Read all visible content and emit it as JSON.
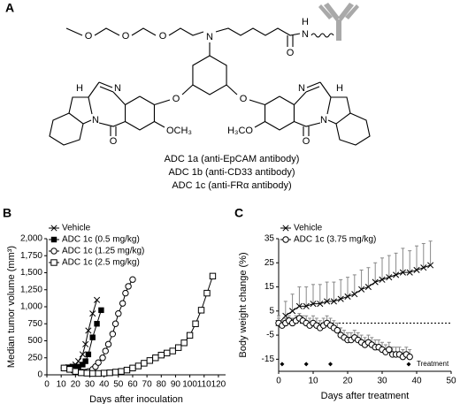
{
  "structure": {
    "panel": "A",
    "atoms": [
      "O",
      "O",
      "O",
      "N",
      "O",
      "N",
      "H",
      "O",
      "O",
      "N",
      "N",
      "O",
      "H",
      "OCH₃",
      "N",
      "N",
      "O",
      "H",
      "H₃CO"
    ],
    "captions": [
      "ADC 1a (anti-EpCAM antibody)",
      "ADC 1b (anti-CD33 antibody)",
      "ADC 1c (anti-FRα antibody)"
    ]
  },
  "chart_data": [
    {
      "type": "line",
      "panel": "B",
      "xlabel": "Days after inoculation",
      "ylabel": "Median tumor volume (mm³)",
      "xlim": [
        0,
        125
      ],
      "xticks": [
        0,
        10,
        20,
        30,
        40,
        50,
        60,
        70,
        80,
        90,
        100,
        110,
        120
      ],
      "ylim": [
        0,
        2000
      ],
      "yticks": [
        0,
        250,
        500,
        750,
        {
          "value": 1000,
          "label": "1,000"
        },
        {
          "value": 1250,
          "label": "1,250"
        },
        {
          "value": 1500,
          "label": "1,500"
        },
        {
          "value": 1750,
          "label": "1,750"
        },
        {
          "value": 2000,
          "label": "2,000"
        }
      ],
      "legend": "top-left",
      "series": [
        {
          "name": "Vehicle",
          "marker": "x",
          "color": "#000",
          "x": [
            12,
            15,
            18,
            20,
            22,
            25,
            27,
            29,
            32,
            35
          ],
          "values": [
            100,
            110,
            120,
            150,
            200,
            300,
            450,
            650,
            900,
            1100
          ]
        },
        {
          "name": "ADC 1c (0.5 mg/kg)",
          "marker": "filled-square",
          "color": "#000",
          "x": [
            12,
            15,
            18,
            20,
            22,
            25,
            27,
            29,
            32,
            35,
            38
          ],
          "values": [
            100,
            110,
            120,
            110,
            120,
            150,
            200,
            300,
            550,
            750,
            950
          ]
        },
        {
          "name": "ADC 1c (1.25 mg/kg)",
          "marker": "open-circle",
          "color": "#000",
          "x": [
            12,
            15,
            18,
            20,
            22,
            25,
            27,
            29,
            32,
            34,
            36,
            39,
            41,
            43,
            46,
            48,
            50,
            53,
            55,
            57,
            60
          ],
          "values": [
            100,
            90,
            70,
            60,
            50,
            40,
            40,
            50,
            80,
            120,
            180,
            250,
            350,
            450,
            600,
            750,
            900,
            1050,
            1200,
            1300,
            1400
          ]
        },
        {
          "name": "ADC 1c (2.5 mg/kg)",
          "marker": "open-square",
          "color": "#000",
          "x": [
            12,
            16,
            20,
            24,
            28,
            32,
            36,
            40,
            44,
            48,
            52,
            56,
            60,
            64,
            68,
            72,
            76,
            80,
            84,
            88,
            92,
            96,
            100,
            104,
            108,
            112,
            116
          ],
          "values": [
            100,
            80,
            50,
            30,
            25,
            20,
            20,
            25,
            30,
            40,
            50,
            70,
            100,
            130,
            170,
            210,
            250,
            290,
            320,
            350,
            400,
            470,
            580,
            750,
            950,
            1200,
            1450
          ]
        }
      ]
    },
    {
      "type": "line",
      "panel": "C",
      "xlabel": "Days after treatment",
      "ylabel": "Body weight change (%)",
      "xlim": [
        0,
        50
      ],
      "xticks": [
        0,
        10,
        20,
        30,
        40,
        50
      ],
      "ylim": [
        -20,
        35
      ],
      "yticks": [
        -15,
        -5,
        5,
        15,
        25,
        35
      ],
      "reference_line": 0,
      "legend": "top-left",
      "series": [
        {
          "name": "Vehicle",
          "marker": "x",
          "color": "#000",
          "x": [
            0,
            2,
            4,
            6,
            8,
            10,
            12,
            14,
            16,
            18,
            20,
            22,
            24,
            26,
            28,
            30,
            32,
            34,
            36,
            38,
            40,
            42,
            44
          ],
          "values": [
            0,
            3,
            5,
            7,
            7,
            8,
            8,
            9,
            9,
            10,
            11,
            12,
            14,
            15,
            17,
            18,
            19,
            20,
            21,
            21,
            22,
            23,
            24
          ],
          "errors": [
            3,
            6,
            7,
            8,
            8,
            8,
            8,
            8,
            8,
            8,
            8,
            8,
            8,
            8,
            8,
            9,
            9,
            9,
            10,
            9,
            10,
            10,
            10
          ]
        },
        {
          "name": "ADC 1c (3.75 mg/kg)",
          "marker": "open-circle",
          "color": "#000",
          "x": [
            0,
            1,
            2,
            3,
            4,
            5,
            6,
            7,
            8,
            9,
            10,
            11,
            12,
            13,
            14,
            15,
            16,
            17,
            18,
            19,
            20,
            21,
            22,
            23,
            24,
            25,
            26,
            27,
            28,
            29,
            30,
            31,
            32,
            33,
            34,
            35,
            36,
            37,
            38
          ],
          "values": [
            0,
            -1,
            0,
            1,
            0,
            1,
            2,
            1,
            0,
            -1,
            0,
            -1,
            -2,
            -1,
            0,
            -1,
            -2,
            -3,
            -5,
            -6,
            -7,
            -7,
            -6,
            -7,
            -8,
            -9,
            -8,
            -9,
            -10,
            -10,
            -11,
            -12,
            -11,
            -13,
            -13,
            -13,
            -14,
            -13,
            -14
          ],
          "errors": [
            2,
            2,
            2,
            2,
            2,
            2,
            2,
            2,
            3,
            3,
            3,
            3,
            3,
            3,
            3,
            3,
            3,
            3,
            3,
            3,
            3,
            3,
            3,
            3,
            3,
            3,
            3,
            3,
            3,
            3,
            3,
            3,
            3,
            3,
            3,
            3,
            3,
            3,
            3
          ]
        },
        {
          "name": "Treatment",
          "marker": "diamond",
          "color": "#000",
          "line": false,
          "legend": "bottom-right",
          "x": [
            1,
            8,
            15
          ],
          "values": [
            -17,
            -17,
            -17
          ]
        }
      ]
    }
  ]
}
